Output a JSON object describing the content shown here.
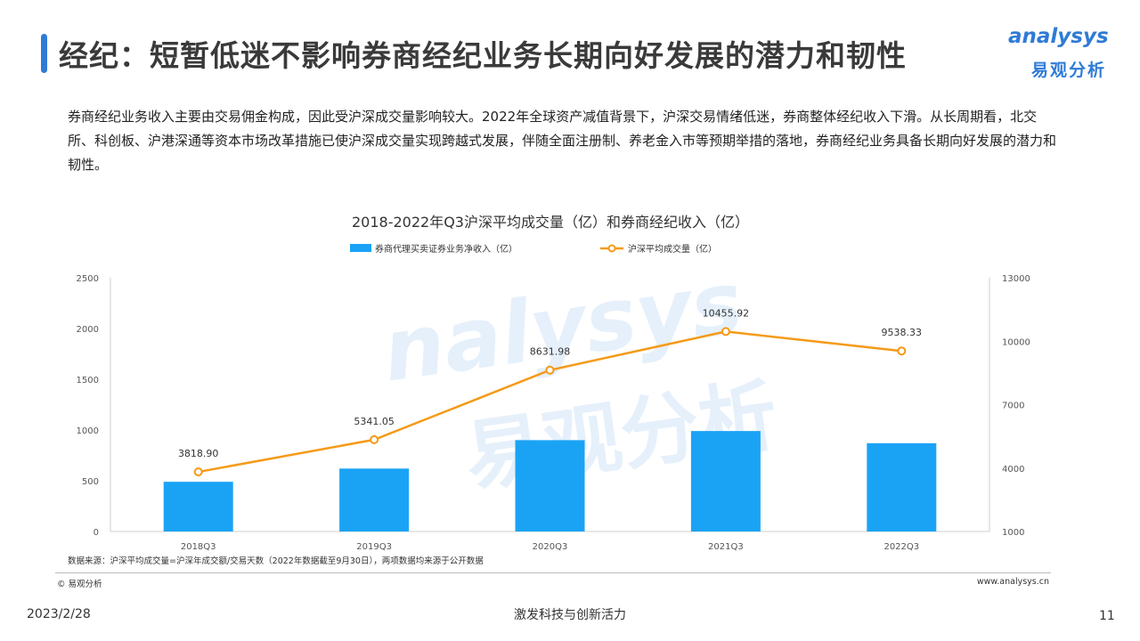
{
  "header": {
    "title": "经纪：短暂低迷不影响券商经纪业务长期向好发展的潜力和韧性",
    "logo_en": "analysys",
    "logo_cn": "易观分析"
  },
  "intro_text": "券商经纪业务收入主要由交易佣金构成，因此受沪深成交量影响较大。2022年全球资产减值背景下，沪深交易情绪低迷，券商整体经纪收入下滑。从长周期看，北交所、科创板、沪港深通等资本市场改革措施已使沪深成交量实现跨越式发展，伴随全面注册制、养老金入市等预期举措的落地，券商经纪业务具备长期向好发展的潜力和韧性。",
  "watermark": {
    "en": "nalysys",
    "cn": "易观分析"
  },
  "chart_data": {
    "type": "bar+line",
    "title": "2018-2022年Q3沪深平均成交量（亿）和券商经纪收入（亿）",
    "categories": [
      "2018Q3",
      "2019Q3",
      "2020Q3",
      "2021Q3",
      "2022Q3"
    ],
    "series": [
      {
        "name": "券商代理买卖证券业务净收入（亿）",
        "type": "bar",
        "axis": "left",
        "color": "#1aa3f5",
        "values": [
          490,
          620,
          900,
          990,
          870
        ]
      },
      {
        "name": "沪深平均成交量（亿）",
        "type": "line",
        "axis": "right",
        "color": "#f59a17",
        "values": [
          3818.9,
          5341.05,
          8631.98,
          10455.92,
          9538.33
        ],
        "labels": [
          "3818.90",
          "5341.05",
          "8631.98",
          "10455.92",
          "9538.33"
        ]
      }
    ],
    "y_left": {
      "min": 0,
      "max": 2500,
      "ticks": [
        0,
        500,
        1000,
        1500,
        2000,
        2500
      ]
    },
    "y_right": {
      "min": 1000,
      "max": 13000,
      "ticks": [
        1000,
        4000,
        7000,
        10000,
        13000
      ]
    },
    "legend_position": "top-center",
    "grid": false
  },
  "footer": {
    "source": "数据来源：沪深平均成交量=沪深年成交额/交易天数（2022年数据截至9月30日），两项数据均来源于公开数据",
    "copyright": "© 易观分析",
    "site": "www.analysys.cn",
    "date": "2023/2/28",
    "slogan": "激发科技与创新活力",
    "page": "11"
  }
}
